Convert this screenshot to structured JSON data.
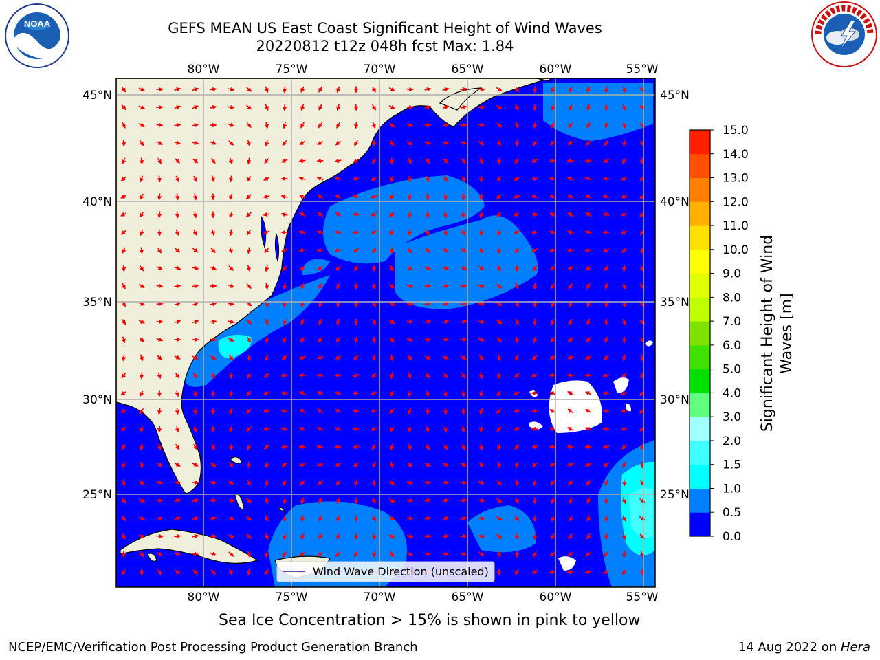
{
  "title": {
    "line1": "GEFS MEAN US East Coast Significant Height of Wind Waves",
    "line2": "20220812 t12z 048h fcst   Max: 1.84"
  },
  "map": {
    "lon_labels": [
      "80°W",
      "75°W",
      "70°W",
      "65°W",
      "60°W",
      "55°W"
    ],
    "lat_labels": [
      "45°N",
      "40°N",
      "35°N",
      "30°N",
      "25°N"
    ],
    "legend_label": "Wind Wave Direction (unscaled)"
  },
  "colorbar": {
    "label_line1": "Significant Height of Wind",
    "label_line2": "Waves [m]",
    "ticks": [
      "0.0",
      "0.5",
      "1.0",
      "1.5",
      "2.0",
      "3.0",
      "4.0",
      "5.0",
      "6.0",
      "7.0",
      "8.0",
      "9.0",
      "10.0",
      "11.0",
      "12.0",
      "13.0",
      "14.0",
      "15.0"
    ],
    "colors": [
      "#0000ff",
      "#0080ff",
      "#00ffff",
      "#40ffff",
      "#a0ffff",
      "#60ff80",
      "#00e000",
      "#40e000",
      "#80e000",
      "#c0ff00",
      "#e0ff00",
      "#ffff00",
      "#ffe000",
      "#ffb000",
      "#ff8000",
      "#ff5000",
      "#ff2000",
      "#ff0000"
    ]
  },
  "caption": "Sea Ice Concentration > 15% is shown in pink to yellow",
  "footer": {
    "left": "NCEP/EMC/Verification Post Processing Product Generation Branch",
    "right_prefix": "14 Aug 2022 on ",
    "right_host": "Hera"
  },
  "logos": {
    "noaa": "NOAA",
    "nws": "NATIONAL WEATHER SERVICE"
  }
}
